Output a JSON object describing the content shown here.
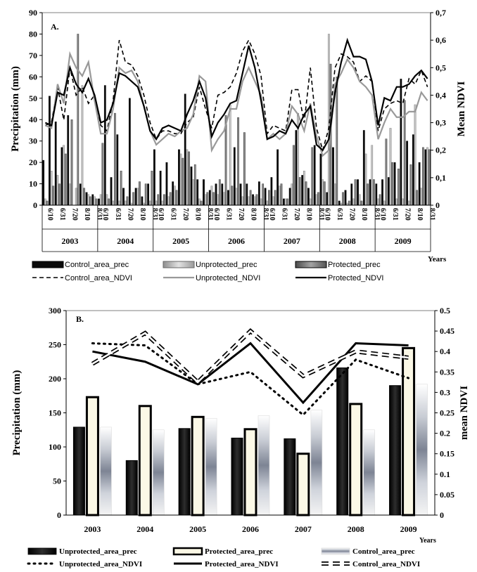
{
  "chart_data": [
    {
      "panel": "A.",
      "type": "bar+line",
      "ylabel": "Precipitation (mm)",
      "y2label": "Mean NDVI",
      "ylim": [
        0,
        90
      ],
      "y2lim": [
        0,
        0.7
      ],
      "yticks": [
        "0",
        "10",
        "20",
        "30",
        "40",
        "50",
        "60",
        "70",
        "80",
        "90"
      ],
      "y2ticks": [
        "0",
        "0,1",
        "0,2",
        "0,3",
        "0,4",
        "0,5",
        "0,6",
        "0,7"
      ],
      "xlabel": "Years",
      "years": [
        "2003",
        "2004",
        "2005",
        "2006",
        "2007",
        "2008",
        "2009"
      ],
      "date_labels": [
        "6/10",
        "6/31",
        "7/20",
        "8/10",
        "8/31"
      ],
      "periods_per_year": 9,
      "series": [
        {
          "name": "Control_area_prec",
          "kind": "bar",
          "values": [
            [
              21,
              51,
              39,
              27,
              42,
              0,
              10,
              6,
              5
            ],
            [
              3,
              56,
              13,
              33,
              8,
              50,
              8,
              4,
              10
            ],
            [
              26,
              16,
              20,
              11,
              26,
              52,
              18,
              12,
              12
            ],
            [
              7,
              10,
              10,
              7,
              27,
              10,
              10,
              5,
              11
            ],
            [
              8,
              13,
              26,
              3,
              8,
              35,
              14,
              8,
              28
            ],
            [
              24,
              6,
              27,
              2,
              7,
              10,
              12,
              35,
              12
            ],
            [
              10,
              12,
              13,
              20,
              59,
              30,
              33,
              20,
              26
            ]
          ]
        },
        {
          "name": "Unprotected_prec",
          "kind": "bar",
          "values": [
            [
              3,
              16,
              14,
              28,
              10,
              8,
              56,
              5,
              4
            ],
            [
              5,
              5,
              2,
              2,
              2,
              1,
              8,
              1,
              2
            ],
            [
              2,
              2,
              4,
              9,
              24,
              26,
              12,
              3,
              5
            ],
            [
              9,
              5,
              6,
              47,
              8,
              4,
              4,
              4,
              3
            ],
            [
              2,
              4,
              9,
              3,
              10,
              43,
              16,
              3,
              5
            ],
            [
              12,
              80,
              10,
              1,
              1,
              3,
              5,
              24,
              28
            ],
            [
              3,
              2,
              36,
              3,
              3,
              2,
              47,
              8,
              27
            ]
          ]
        },
        {
          "name": "Protected_prec",
          "kind": "bar",
          "values": [
            [
              2,
              9,
              10,
              24,
              40,
              80,
              8,
              4,
              3
            ],
            [
              29,
              3,
              43,
              16,
              4,
              6,
              11,
              10,
              16
            ],
            [
              5,
              5,
              6,
              7,
              22,
              25,
              19,
              2,
              6
            ],
            [
              6,
              12,
              42,
              9,
              41,
              34,
              7,
              5,
              10
            ],
            [
              7,
              7,
              10,
              3,
              28,
              13,
              11,
              27,
              6
            ],
            [
              11,
              66,
              60,
              6,
              2,
              12,
              2,
              10,
              12
            ],
            [
              5,
              31,
              20,
              17,
              49,
              19,
              7,
              27,
              26
            ]
          ]
        },
        {
          "name": "Control_area_NDVI",
          "kind": "line",
          "values": [
            [
              0.29,
              0.3,
              0.43,
              0.31,
              0.5,
              0.4,
              0.43,
              0.37,
              0.4
            ],
            [
              0.29,
              0.27,
              0.38,
              0.6,
              0.52,
              0.51,
              0.47,
              0.4,
              0.3
            ],
            [
              0.24,
              0.27,
              0.27,
              0.26,
              0.26,
              0.3,
              0.32,
              0.43,
              0.35
            ],
            [
              0.28,
              0.4,
              0.41,
              0.43,
              0.48,
              0.56,
              0.6,
              0.55,
              0.47
            ],
            [
              0.26,
              0.29,
              0.28,
              0.27,
              0.42,
              0.42,
              0.3,
              0.5,
              0.28
            ],
            [
              0.2,
              0.28,
              0.5,
              0.55,
              0.54,
              0.52,
              0.45,
              0.47,
              0.45
            ],
            [
              0.27,
              0.35,
              0.37,
              0.38,
              0.37,
              0.46,
              0.44,
              0.49,
              0.43
            ]
          ]
        },
        {
          "name": "Unprotected_NDVI",
          "kind": "line",
          "values": [
            [
              0.29,
              0.28,
              0.44,
              0.37,
              0.55,
              0.5,
              0.47,
              0.52,
              0.38
            ],
            [
              0.26,
              0.26,
              0.35,
              0.5,
              0.48,
              0.49,
              0.45,
              0.36,
              0.27
            ],
            [
              0.22,
              0.24,
              0.26,
              0.25,
              0.27,
              0.28,
              0.33,
              0.47,
              0.45
            ],
            [
              0.2,
              0.24,
              0.27,
              0.35,
              0.35,
              0.45,
              0.5,
              0.45,
              0.4
            ],
            [
              0.24,
              0.26,
              0.24,
              0.26,
              0.36,
              0.33,
              0.27,
              0.37,
              0.25
            ],
            [
              0.18,
              0.2,
              0.44,
              0.48,
              0.53,
              0.5,
              0.45,
              0.43,
              0.4
            ],
            [
              0.24,
              0.3,
              0.35,
              0.32,
              0.32,
              0.34,
              0.34,
              0.41,
              0.38
            ]
          ]
        },
        {
          "name": "Protected_NDVI",
          "kind": "line",
          "values": [
            [
              0.3,
              0.29,
              0.41,
              0.4,
              0.5,
              0.44,
              0.41,
              0.46,
              0.4
            ],
            [
              0.3,
              0.31,
              0.37,
              0.48,
              0.47,
              0.45,
              0.43,
              0.36,
              0.27
            ],
            [
              0.24,
              0.28,
              0.29,
              0.28,
              0.27,
              0.33,
              0.38,
              0.45,
              0.39
            ],
            [
              0.25,
              0.3,
              0.33,
              0.37,
              0.38,
              0.48,
              0.58,
              0.5,
              0.38
            ],
            [
              0.24,
              0.25,
              0.27,
              0.26,
              0.31,
              0.28,
              0.33,
              0.36,
              0.22
            ],
            [
              0.2,
              0.24,
              0.41,
              0.52,
              0.6,
              0.54,
              0.54,
              0.53,
              0.45
            ],
            [
              0.29,
              0.39,
              0.38,
              0.43,
              0.43,
              0.44,
              0.47,
              0.49,
              0.46
            ]
          ]
        }
      ]
    },
    {
      "panel": "B.",
      "type": "bar+line",
      "ylabel": "Precipitation (mm)",
      "y2label": "mean NDVI",
      "ylim": [
        0,
        300
      ],
      "y2lim": [
        0,
        0.5
      ],
      "yticks": [
        "0",
        "50",
        "100",
        "150",
        "200",
        "250",
        "300"
      ],
      "y2ticks": [
        "0",
        "0.05",
        "0.1",
        "0.15",
        "0.2",
        "0.25",
        "0.3",
        "0.35",
        "0.4",
        "0.45",
        "0.5"
      ],
      "xlabel": "Years",
      "categories": [
        "2003",
        "2004",
        "2005",
        "2006",
        "2007",
        "2008",
        "2009"
      ],
      "series": [
        {
          "name": "Unprotected_area_prec",
          "kind": "bar",
          "values": [
            129,
            80,
            127,
            113,
            112,
            216,
            190
          ]
        },
        {
          "name": "Protected_area_prec",
          "kind": "bar",
          "values": [
            173,
            160,
            144,
            126,
            90,
            163,
            245
          ]
        },
        {
          "name": "Control_area_prec",
          "kind": "bar",
          "values": [
            129,
            125,
            142,
            146,
            154,
            125,
            192
          ]
        },
        {
          "name": "Unprotected_area_NDVI",
          "kind": "line",
          "values": [
            0.42,
            0.415,
            0.32,
            0.35,
            0.245,
            0.38,
            0.335
          ]
        },
        {
          "name": "Protected_area_NDVI",
          "kind": "line",
          "values": [
            0.4,
            0.375,
            0.32,
            0.42,
            0.275,
            0.42,
            0.415
          ]
        },
        {
          "name": "Control_area_NDVI",
          "kind": "line",
          "values": [
            0.37,
            0.445,
            0.325,
            0.45,
            0.34,
            0.4,
            0.385
          ]
        }
      ]
    }
  ]
}
